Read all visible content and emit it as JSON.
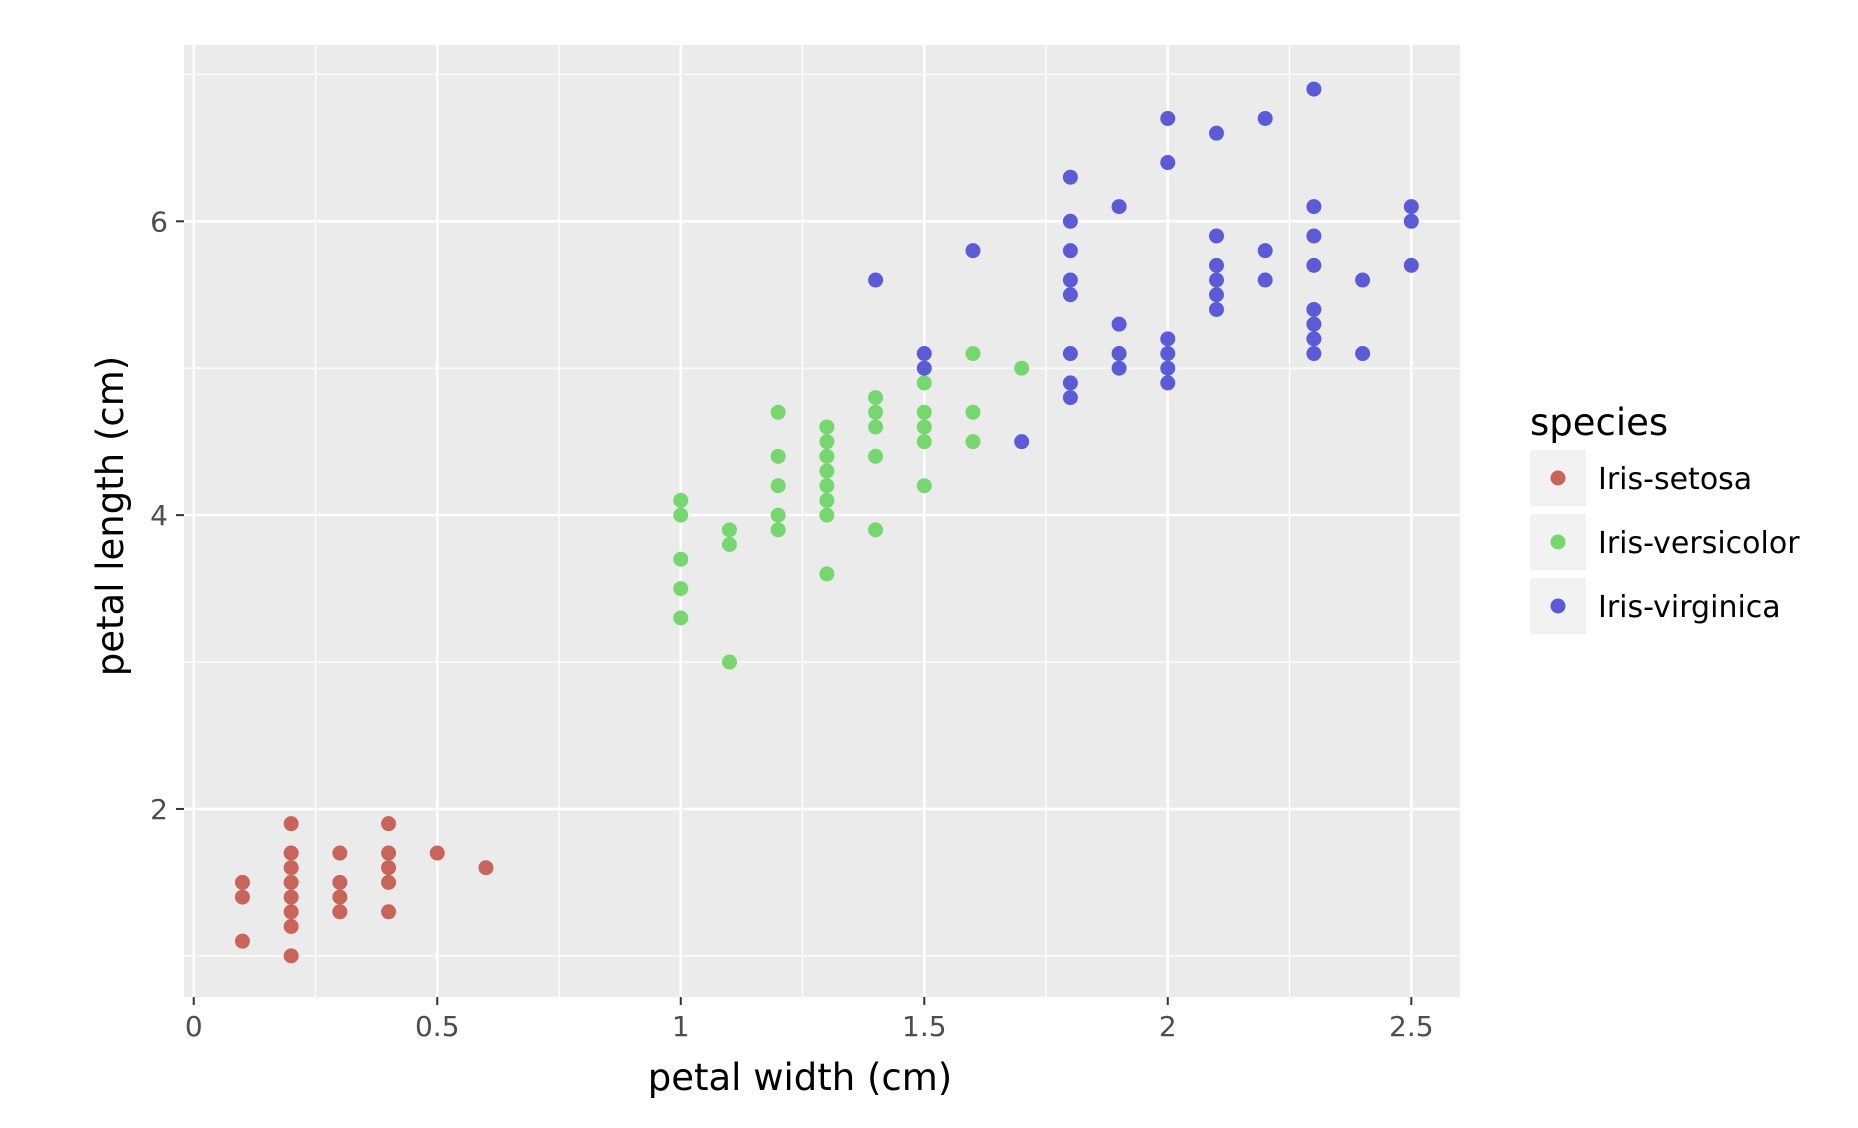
{
  "chart_data": {
    "type": "scatter",
    "title": "",
    "xlabel": "petal width (cm)",
    "ylabel": "petal length (cm)",
    "xlim": [
      -0.02,
      2.6
    ],
    "ylim": [
      0.72,
      7.2
    ],
    "x_ticks": [
      0,
      0.5,
      1,
      1.5,
      2,
      2.5
    ],
    "x_tick_labels": [
      "0",
      "0.5",
      "1",
      "1.5",
      "2",
      "2.5"
    ],
    "y_ticks": [
      2,
      4,
      6
    ],
    "y_tick_labels": [
      "2",
      "4",
      "6"
    ],
    "grid": true,
    "panel_background": "#ebebeb",
    "legend": {
      "title": "species",
      "placement": "right"
    },
    "series": [
      {
        "name": "Iris-setosa",
        "color": "#c8645a",
        "points": [
          [
            0.1,
            1.1
          ],
          [
            0.1,
            1.4
          ],
          [
            0.1,
            1.5
          ],
          [
            0.2,
            1.0
          ],
          [
            0.2,
            1.2
          ],
          [
            0.2,
            1.3
          ],
          [
            0.2,
            1.4
          ],
          [
            0.2,
            1.5
          ],
          [
            0.2,
            1.6
          ],
          [
            0.2,
            1.7
          ],
          [
            0.2,
            1.9
          ],
          [
            0.3,
            1.3
          ],
          [
            0.3,
            1.4
          ],
          [
            0.3,
            1.5
          ],
          [
            0.3,
            1.7
          ],
          [
            0.4,
            1.3
          ],
          [
            0.4,
            1.5
          ],
          [
            0.4,
            1.6
          ],
          [
            0.4,
            1.7
          ],
          [
            0.4,
            1.9
          ],
          [
            0.5,
            1.7
          ],
          [
            0.6,
            1.6
          ]
        ]
      },
      {
        "name": "Iris-versicolor",
        "color": "#76d76e",
        "points": [
          [
            1.0,
            3.3
          ],
          [
            1.0,
            3.5
          ],
          [
            1.0,
            3.7
          ],
          [
            1.0,
            4.0
          ],
          [
            1.0,
            4.1
          ],
          [
            1.1,
            3.0
          ],
          [
            1.1,
            3.8
          ],
          [
            1.1,
            3.9
          ],
          [
            1.2,
            3.9
          ],
          [
            1.2,
            4.0
          ],
          [
            1.2,
            4.2
          ],
          [
            1.2,
            4.4
          ],
          [
            1.2,
            4.7
          ],
          [
            1.3,
            3.6
          ],
          [
            1.3,
            4.0
          ],
          [
            1.3,
            4.1
          ],
          [
            1.3,
            4.2
          ],
          [
            1.3,
            4.3
          ],
          [
            1.3,
            4.4
          ],
          [
            1.3,
            4.5
          ],
          [
            1.3,
            4.6
          ],
          [
            1.4,
            3.9
          ],
          [
            1.4,
            4.4
          ],
          [
            1.4,
            4.6
          ],
          [
            1.4,
            4.7
          ],
          [
            1.4,
            4.8
          ],
          [
            1.5,
            4.2
          ],
          [
            1.5,
            4.5
          ],
          [
            1.5,
            4.6
          ],
          [
            1.5,
            4.7
          ],
          [
            1.5,
            4.9
          ],
          [
            1.6,
            4.5
          ],
          [
            1.6,
            4.7
          ],
          [
            1.6,
            5.1
          ],
          [
            1.7,
            5.0
          ]
        ]
      },
      {
        "name": "Iris-virginica",
        "color": "#5b5bd7",
        "points": [
          [
            1.4,
            5.6
          ],
          [
            1.5,
            5.0
          ],
          [
            1.5,
            5.1
          ],
          [
            1.6,
            5.8
          ],
          [
            1.7,
            4.5
          ],
          [
            1.8,
            4.8
          ],
          [
            1.8,
            4.9
          ],
          [
            1.8,
            5.1
          ],
          [
            1.8,
            5.5
          ],
          [
            1.8,
            5.6
          ],
          [
            1.8,
            5.8
          ],
          [
            1.8,
            6.0
          ],
          [
            1.8,
            6.3
          ],
          [
            1.9,
            5.0
          ],
          [
            1.9,
            5.1
          ],
          [
            1.9,
            5.3
          ],
          [
            1.9,
            6.1
          ],
          [
            2.0,
            4.9
          ],
          [
            2.0,
            5.0
          ],
          [
            2.0,
            5.1
          ],
          [
            2.0,
            5.2
          ],
          [
            2.0,
            6.4
          ],
          [
            2.0,
            6.7
          ],
          [
            2.1,
            5.4
          ],
          [
            2.1,
            5.5
          ],
          [
            2.1,
            5.6
          ],
          [
            2.1,
            5.7
          ],
          [
            2.1,
            5.9
          ],
          [
            2.1,
            6.6
          ],
          [
            2.2,
            5.6
          ],
          [
            2.2,
            5.8
          ],
          [
            2.2,
            6.7
          ],
          [
            2.3,
            5.1
          ],
          [
            2.3,
            5.2
          ],
          [
            2.3,
            5.3
          ],
          [
            2.3,
            5.4
          ],
          [
            2.3,
            5.7
          ],
          [
            2.3,
            5.9
          ],
          [
            2.3,
            6.1
          ],
          [
            2.3,
            6.9
          ],
          [
            2.4,
            5.1
          ],
          [
            2.4,
            5.6
          ],
          [
            2.5,
            5.7
          ],
          [
            2.5,
            6.0
          ],
          [
            2.5,
            6.1
          ]
        ]
      }
    ]
  }
}
